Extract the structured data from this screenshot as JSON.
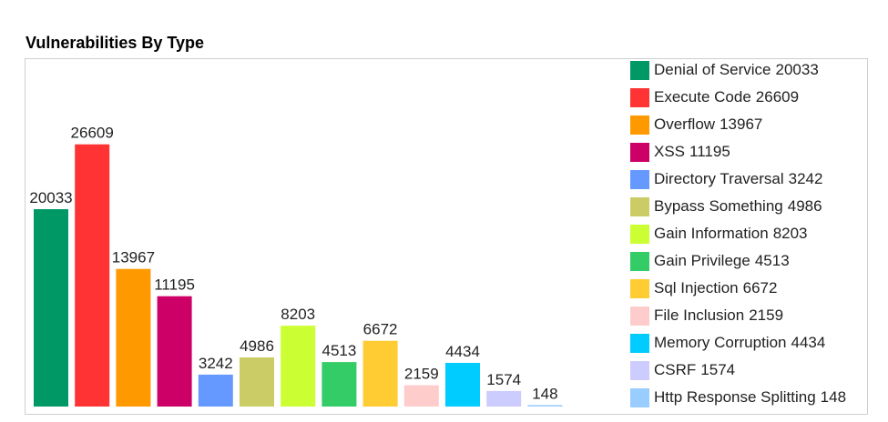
{
  "chart_data": {
    "type": "bar",
    "title": "Vulnerabilities By Type",
    "categories": [
      "Denial of Service",
      "Execute Code",
      "Overflow",
      "XSS",
      "Directory Traversal",
      "Bypass Something",
      "Gain Information",
      "Gain Privilege",
      "Sql Injection",
      "File Inclusion",
      "Memory Corruption",
      "CSRF",
      "Http Response Splitting"
    ],
    "values": [
      20033,
      26609,
      13967,
      11195,
      3242,
      4986,
      8203,
      4513,
      6672,
      2159,
      4434,
      1574,
      148
    ],
    "colors": [
      "#009966",
      "#ff3333",
      "#ff9900",
      "#cc0066",
      "#6699ff",
      "#cccc66",
      "#ccff33",
      "#33cc66",
      "#ffcc33",
      "#ffcccc",
      "#00ccff",
      "#ccccff",
      "#99ccff"
    ],
    "ylim": [
      0,
      30000
    ],
    "xlabel": "",
    "ylabel": "",
    "grid": false,
    "legend_position": "right"
  }
}
